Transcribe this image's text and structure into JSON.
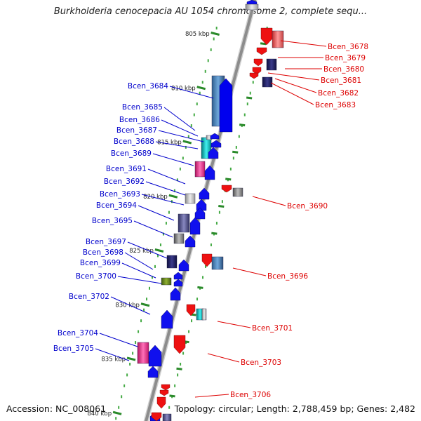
{
  "title": "Burkholderia cenocepacia AU 1054 chromosome 2, complete sequ...",
  "accession": "Accession: NC_008061",
  "topology": "Topology: circular; Length: 2,788,459 bp; Genes: 2,482",
  "colors": {
    "left_label": "#0000cc",
    "right_label": "#dd0000",
    "backbone": "#8c8c8c",
    "tick_major": "#2a8a2a",
    "tick_minor": "#44aa44"
  },
  "scale": {
    "unit": "kbp",
    "start_kbp": 805,
    "end_kbp": 840,
    "major_ticks": [
      {
        "kbp": 805,
        "label": "805 kbp"
      },
      {
        "kbp": 810,
        "label": "810 kbp"
      },
      {
        "kbp": 815,
        "label": "815 kbp"
      },
      {
        "kbp": 820,
        "label": "820 kbp"
      },
      {
        "kbp": 825,
        "label": "825 kbp"
      },
      {
        "kbp": 830,
        "label": "830 kbp"
      },
      {
        "kbp": 835,
        "label": "835 kbp"
      },
      {
        "kbp": 840,
        "label": "840 kbp"
      }
    ]
  },
  "genes_left": [
    {
      "name": "Bcen_3684",
      "label_row": 0
    },
    {
      "name": "Bcen_3685",
      "label_row": 1
    },
    {
      "name": "Bcen_3686",
      "label_row": 2
    },
    {
      "name": "Bcen_3687",
      "label_row": 3
    },
    {
      "name": "Bcen_3688",
      "label_row": 4
    },
    {
      "name": "Bcen_3689",
      "label_row": 5
    },
    {
      "name": "Bcen_3691",
      "label_row": 6
    },
    {
      "name": "Bcen_3692",
      "label_row": 7
    },
    {
      "name": "Bcen_3693",
      "label_row": 8
    },
    {
      "name": "Bcen_3694",
      "label_row": 9
    },
    {
      "name": "Bcen_3695",
      "label_row": 10
    },
    {
      "name": "Bcen_3697",
      "label_row": 11
    },
    {
      "name": "Bcen_3698",
      "label_row": 12
    },
    {
      "name": "Bcen_3699",
      "label_row": 13
    },
    {
      "name": "Bcen_3700",
      "label_row": 14
    },
    {
      "name": "Bcen_3702",
      "label_row": 15
    },
    {
      "name": "Bcen_3704",
      "label_row": 16
    },
    {
      "name": "Bcen_3705",
      "label_row": 17
    }
  ],
  "genes_right": [
    {
      "name": "Bcen_3678"
    },
    {
      "name": "Bcen_3679"
    },
    {
      "name": "Bcen_3680"
    },
    {
      "name": "Bcen_3681"
    },
    {
      "name": "Bcen_3682"
    },
    {
      "name": "Bcen_3683"
    },
    {
      "name": "Bcen_3690"
    },
    {
      "name": "Bcen_3696"
    },
    {
      "name": "Bcen_3701"
    },
    {
      "name": "Bcen_3703"
    },
    {
      "name": "Bcen_3706"
    }
  ]
}
